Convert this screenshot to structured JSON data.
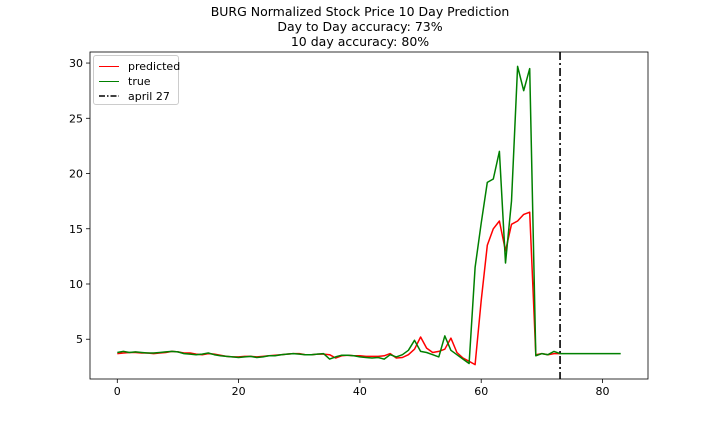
{
  "chart_data": {
    "type": "line",
    "title_lines": [
      "BURG Normalized Stock Price 10 Day Prediction",
      "Day to Day accuracy: 73%",
      "10 day accuracy: 80%"
    ],
    "xlabel": "",
    "ylabel": "",
    "xlim": [
      -4.5,
      87.5
    ],
    "ylim": [
      1.4,
      31.0
    ],
    "x_ticks": [
      0,
      20,
      40,
      60,
      80
    ],
    "y_ticks": [
      5,
      10,
      15,
      20,
      25,
      30
    ],
    "legend_position": "upper left",
    "grid": false,
    "series": [
      {
        "name": "predicted",
        "color": "#ff0000",
        "x": [
          0,
          1,
          2,
          3,
          4,
          5,
          6,
          7,
          8,
          9,
          10,
          11,
          12,
          13,
          14,
          15,
          16,
          17,
          18,
          19,
          20,
          21,
          22,
          23,
          24,
          25,
          26,
          27,
          28,
          29,
          30,
          31,
          32,
          33,
          34,
          35,
          36,
          37,
          38,
          39,
          40,
          41,
          42,
          43,
          44,
          45,
          46,
          47,
          48,
          49,
          50,
          51,
          52,
          53,
          54,
          55,
          56,
          57,
          58,
          59,
          60,
          61,
          62,
          63,
          64,
          65,
          66,
          67,
          68,
          69,
          70,
          71,
          72,
          73
        ],
        "y": [
          3.7,
          3.75,
          3.8,
          3.8,
          3.75,
          3.75,
          3.7,
          3.75,
          3.8,
          3.9,
          3.85,
          3.75,
          3.75,
          3.65,
          3.6,
          3.7,
          3.65,
          3.55,
          3.45,
          3.4,
          3.4,
          3.45,
          3.45,
          3.4,
          3.45,
          3.5,
          3.55,
          3.6,
          3.65,
          3.7,
          3.7,
          3.6,
          3.6,
          3.65,
          3.65,
          3.6,
          3.3,
          3.5,
          3.55,
          3.5,
          3.5,
          3.45,
          3.45,
          3.45,
          3.5,
          3.7,
          3.3,
          3.35,
          3.6,
          4.1,
          5.2,
          4.2,
          3.8,
          3.9,
          4.1,
          5.1,
          3.8,
          3.3,
          3.0,
          2.7,
          8.5,
          13.5,
          15.0,
          15.7,
          13.0,
          15.4,
          15.7,
          16.3,
          16.5,
          3.6,
          3.7,
          3.6,
          3.7,
          3.7
        ]
      },
      {
        "name": "true",
        "color": "#008000",
        "x": [
          0,
          1,
          2,
          3,
          4,
          5,
          6,
          7,
          8,
          9,
          10,
          11,
          12,
          13,
          14,
          15,
          16,
          17,
          18,
          19,
          20,
          21,
          22,
          23,
          24,
          25,
          26,
          27,
          28,
          29,
          30,
          31,
          32,
          33,
          34,
          35,
          36,
          37,
          38,
          39,
          40,
          41,
          42,
          43,
          44,
          45,
          46,
          47,
          48,
          49,
          50,
          51,
          52,
          53,
          54,
          55,
          56,
          57,
          58,
          59,
          60,
          61,
          62,
          63,
          64,
          65,
          66,
          67,
          68,
          69,
          70,
          71,
          72,
          73,
          74,
          75,
          76,
          77,
          78,
          79,
          80,
          81,
          82,
          83
        ],
        "y": [
          3.8,
          3.9,
          3.8,
          3.85,
          3.8,
          3.75,
          3.75,
          3.8,
          3.85,
          3.9,
          3.85,
          3.7,
          3.65,
          3.6,
          3.65,
          3.75,
          3.6,
          3.5,
          3.45,
          3.4,
          3.35,
          3.4,
          3.45,
          3.35,
          3.4,
          3.5,
          3.5,
          3.6,
          3.65,
          3.7,
          3.65,
          3.6,
          3.6,
          3.65,
          3.7,
          3.2,
          3.4,
          3.55,
          3.55,
          3.5,
          3.4,
          3.35,
          3.3,
          3.35,
          3.2,
          3.6,
          3.4,
          3.6,
          4.0,
          4.9,
          3.9,
          3.8,
          3.6,
          3.4,
          5.3,
          4.0,
          3.6,
          3.2,
          2.8,
          11.5,
          15.5,
          19.2,
          19.5,
          22.0,
          11.9,
          17.5,
          29.7,
          27.5,
          29.5,
          3.5,
          3.7,
          3.6,
          3.9,
          3.7,
          3.7,
          3.7,
          3.7,
          3.7,
          3.7,
          3.7,
          3.7,
          3.7,
          3.7,
          3.7
        ]
      },
      {
        "name": "april 27",
        "color": "#000000",
        "vline_x": 73,
        "style": "dashdot"
      }
    ]
  }
}
